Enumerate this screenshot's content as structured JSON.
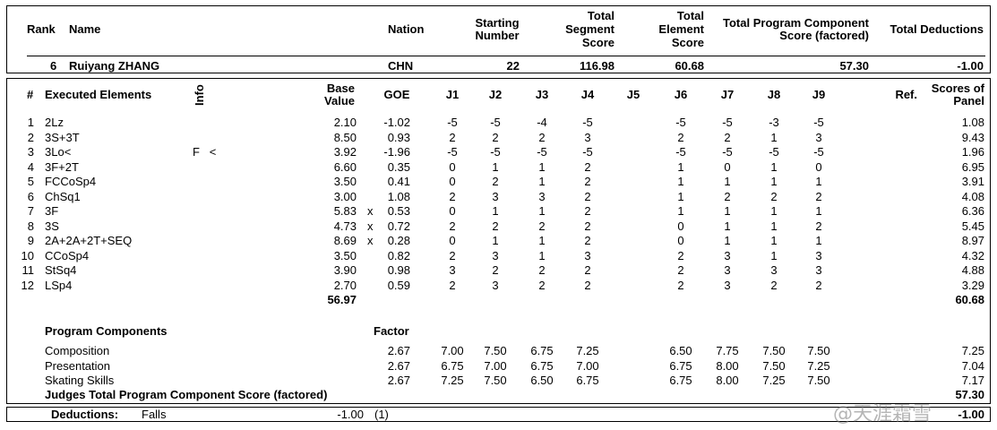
{
  "header": {
    "labels": {
      "rank": "Rank",
      "name": "Name",
      "nation": "Nation",
      "starting_number": [
        "Starting",
        "Number"
      ],
      "tss": [
        "Total",
        "Segment",
        "Score"
      ],
      "tes": [
        "Total",
        "Element",
        "Score"
      ],
      "pcs": [
        "Total Program Component",
        "Score (factored)"
      ],
      "deductions": "Total Deductions"
    },
    "values": {
      "rank": "6",
      "name": "Ruiyang ZHANG",
      "nation": "CHN",
      "starting_number": "22",
      "tss": "116.98",
      "tes": "60.68",
      "pcs": "57.30",
      "deductions": "-1.00"
    }
  },
  "elements_table": {
    "labels": {
      "num": "#",
      "element": "Executed Elements",
      "info": "Info",
      "base": [
        "Base",
        "Value"
      ],
      "goe": "GOE",
      "judges": [
        "J1",
        "J2",
        "J3",
        "J4",
        "J5",
        "J6",
        "J7",
        "J8",
        "J9"
      ],
      "ref": "Ref.",
      "panel": [
        "Scores of",
        "Panel"
      ]
    },
    "rows": [
      {
        "num": "1",
        "element": "2Lz",
        "info": "",
        "base": "2.10",
        "bonus": "",
        "goe": "-1.02",
        "judges": [
          "-5",
          "-5",
          "-4",
          "-5",
          "",
          "-5",
          "-5",
          "-3",
          "-5"
        ],
        "panel": "1.08"
      },
      {
        "num": "2",
        "element": "3S+3T",
        "info": "",
        "base": "8.50",
        "bonus": "",
        "goe": "0.93",
        "judges": [
          "2",
          "2",
          "2",
          "3",
          "",
          "2",
          "2",
          "1",
          "3"
        ],
        "panel": "9.43"
      },
      {
        "num": "3",
        "element": "3Lo<",
        "info": "F   <",
        "base": "3.92",
        "bonus": "",
        "goe": "-1.96",
        "judges": [
          "-5",
          "-5",
          "-5",
          "-5",
          "",
          "-5",
          "-5",
          "-5",
          "-5"
        ],
        "panel": "1.96"
      },
      {
        "num": "4",
        "element": "3F+2T",
        "info": "",
        "base": "6.60",
        "bonus": "",
        "goe": "0.35",
        "judges": [
          "0",
          "1",
          "1",
          "2",
          "",
          "1",
          "0",
          "1",
          "0"
        ],
        "panel": "6.95"
      },
      {
        "num": "5",
        "element": "FCCoSp4",
        "info": "",
        "base": "3.50",
        "bonus": "",
        "goe": "0.41",
        "judges": [
          "0",
          "2",
          "1",
          "2",
          "",
          "1",
          "1",
          "1",
          "1"
        ],
        "panel": "3.91"
      },
      {
        "num": "6",
        "element": "ChSq1",
        "info": "",
        "base": "3.00",
        "bonus": "",
        "goe": "1.08",
        "judges": [
          "2",
          "3",
          "3",
          "2",
          "",
          "1",
          "2",
          "2",
          "2"
        ],
        "panel": "4.08"
      },
      {
        "num": "7",
        "element": "3F",
        "info": "",
        "base": "5.83",
        "bonus": "x",
        "goe": "0.53",
        "judges": [
          "0",
          "1",
          "1",
          "2",
          "",
          "1",
          "1",
          "1",
          "1"
        ],
        "panel": "6.36"
      },
      {
        "num": "8",
        "element": "3S",
        "info": "",
        "base": "4.73",
        "bonus": "x",
        "goe": "0.72",
        "judges": [
          "2",
          "2",
          "2",
          "2",
          "",
          "0",
          "1",
          "1",
          "2"
        ],
        "panel": "5.45"
      },
      {
        "num": "9",
        "element": "2A+2A+2T+SEQ",
        "info": "",
        "base": "8.69",
        "bonus": "x",
        "goe": "0.28",
        "judges": [
          "0",
          "1",
          "1",
          "2",
          "",
          "0",
          "1",
          "1",
          "1"
        ],
        "panel": "8.97"
      },
      {
        "num": "10",
        "element": "CCoSp4",
        "info": "",
        "base": "3.50",
        "bonus": "",
        "goe": "0.82",
        "judges": [
          "2",
          "3",
          "1",
          "3",
          "",
          "2",
          "3",
          "1",
          "3"
        ],
        "panel": "4.32"
      },
      {
        "num": "11",
        "element": "StSq4",
        "info": "",
        "base": "3.90",
        "bonus": "",
        "goe": "0.98",
        "judges": [
          "3",
          "2",
          "2",
          "2",
          "",
          "2",
          "3",
          "3",
          "3"
        ],
        "panel": "4.88"
      },
      {
        "num": "12",
        "element": "LSp4",
        "info": "",
        "base": "2.70",
        "bonus": "",
        "goe": "0.59",
        "judges": [
          "2",
          "3",
          "2",
          "2",
          "",
          "2",
          "3",
          "2",
          "2"
        ],
        "panel": "3.29"
      }
    ],
    "base_total": "56.97",
    "panel_total": "60.68"
  },
  "components": {
    "title": "Program Components",
    "factor_label": "Factor",
    "rows": [
      {
        "name": "Composition",
        "factor": "2.67",
        "judges": [
          "7.00",
          "7.50",
          "6.75",
          "7.25",
          "",
          "6.50",
          "7.75",
          "7.50",
          "7.50"
        ],
        "panel": "7.25"
      },
      {
        "name": "Presentation",
        "factor": "2.67",
        "judges": [
          "6.75",
          "7.00",
          "6.75",
          "7.00",
          "",
          "6.75",
          "8.00",
          "7.50",
          "7.25"
        ],
        "panel": "7.04"
      },
      {
        "name": "Skating Skills",
        "factor": "2.67",
        "judges": [
          "7.25",
          "7.50",
          "6.50",
          "6.75",
          "",
          "6.75",
          "8.00",
          "7.25",
          "7.50"
        ],
        "panel": "7.17"
      }
    ],
    "total_label": "Judges Total Program Component Score (factored)",
    "total": "57.30"
  },
  "deductions_row": {
    "label": "Deductions:",
    "type": "Falls",
    "value": "-1.00",
    "count": "(1)",
    "total": "-1.00"
  },
  "watermark": "@天涯霜雪"
}
